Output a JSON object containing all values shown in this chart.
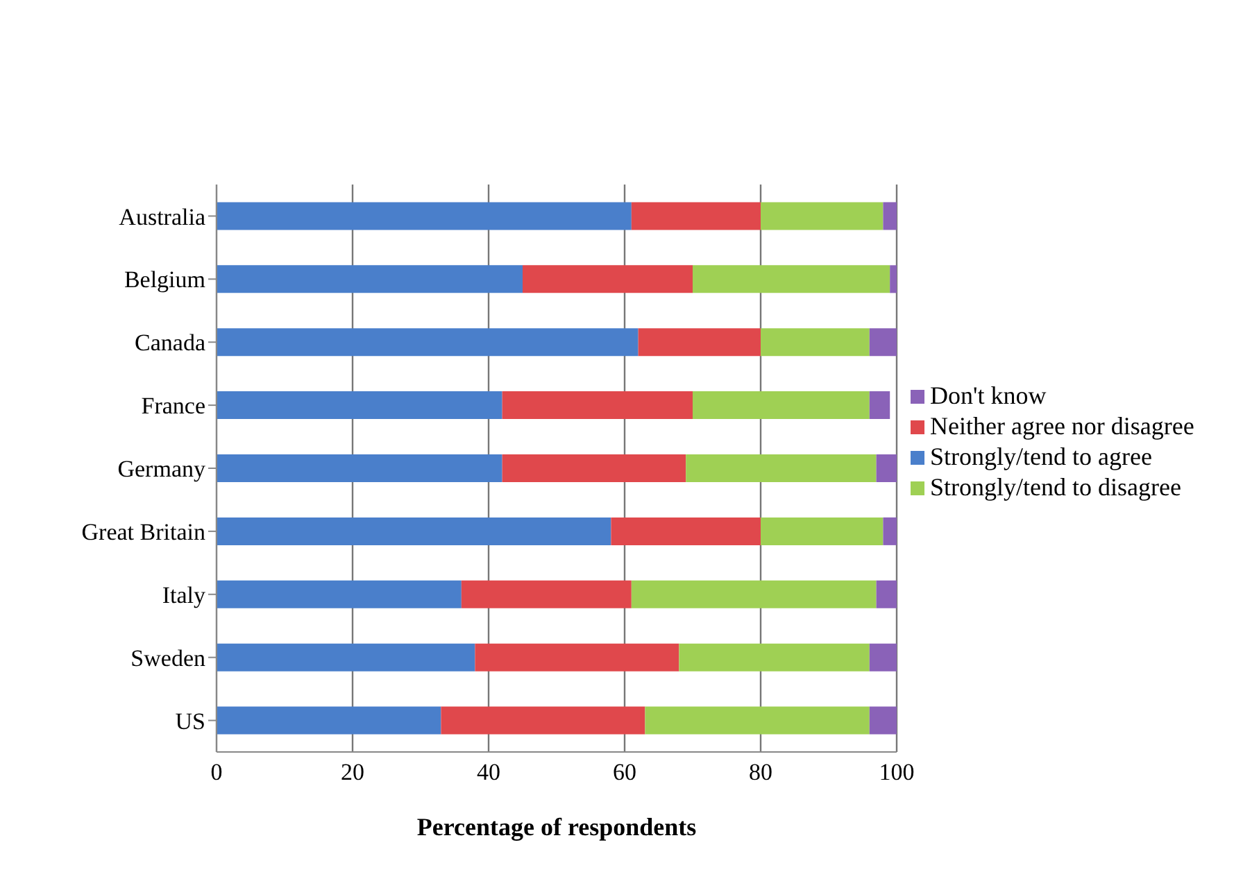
{
  "chart_data": {
    "type": "bar",
    "orientation": "horizontal",
    "stacked": true,
    "xlabel": "Percentage of respondents",
    "categories": [
      "Australia",
      "Belgium",
      "Canada",
      "France",
      "Germany",
      "Great Britain",
      "Italy",
      "Sweden",
      "US"
    ],
    "series": [
      {
        "name": "Strongly/tend to agree",
        "color": "#4a7fcb",
        "values": [
          61,
          45,
          62,
          42,
          42,
          58,
          36,
          38,
          33
        ]
      },
      {
        "name": "Neither agree nor disagree",
        "color": "#e0484c",
        "values": [
          19,
          25,
          18,
          28,
          27,
          22,
          25,
          30,
          30
        ]
      },
      {
        "name": "Strongly/tend to disagree",
        "color": "#9fd054",
        "values": [
          18,
          29,
          16,
          26,
          28,
          18,
          36,
          28,
          33
        ]
      },
      {
        "name": "Don't know",
        "color": "#8a62b8",
        "values": [
          2,
          1,
          4,
          3,
          3,
          2,
          3,
          4,
          4
        ]
      }
    ],
    "xlim": [
      0,
      100
    ],
    "xticks": [
      0,
      20,
      40,
      60,
      80,
      100
    ],
    "grid": "x",
    "legend": "right"
  }
}
